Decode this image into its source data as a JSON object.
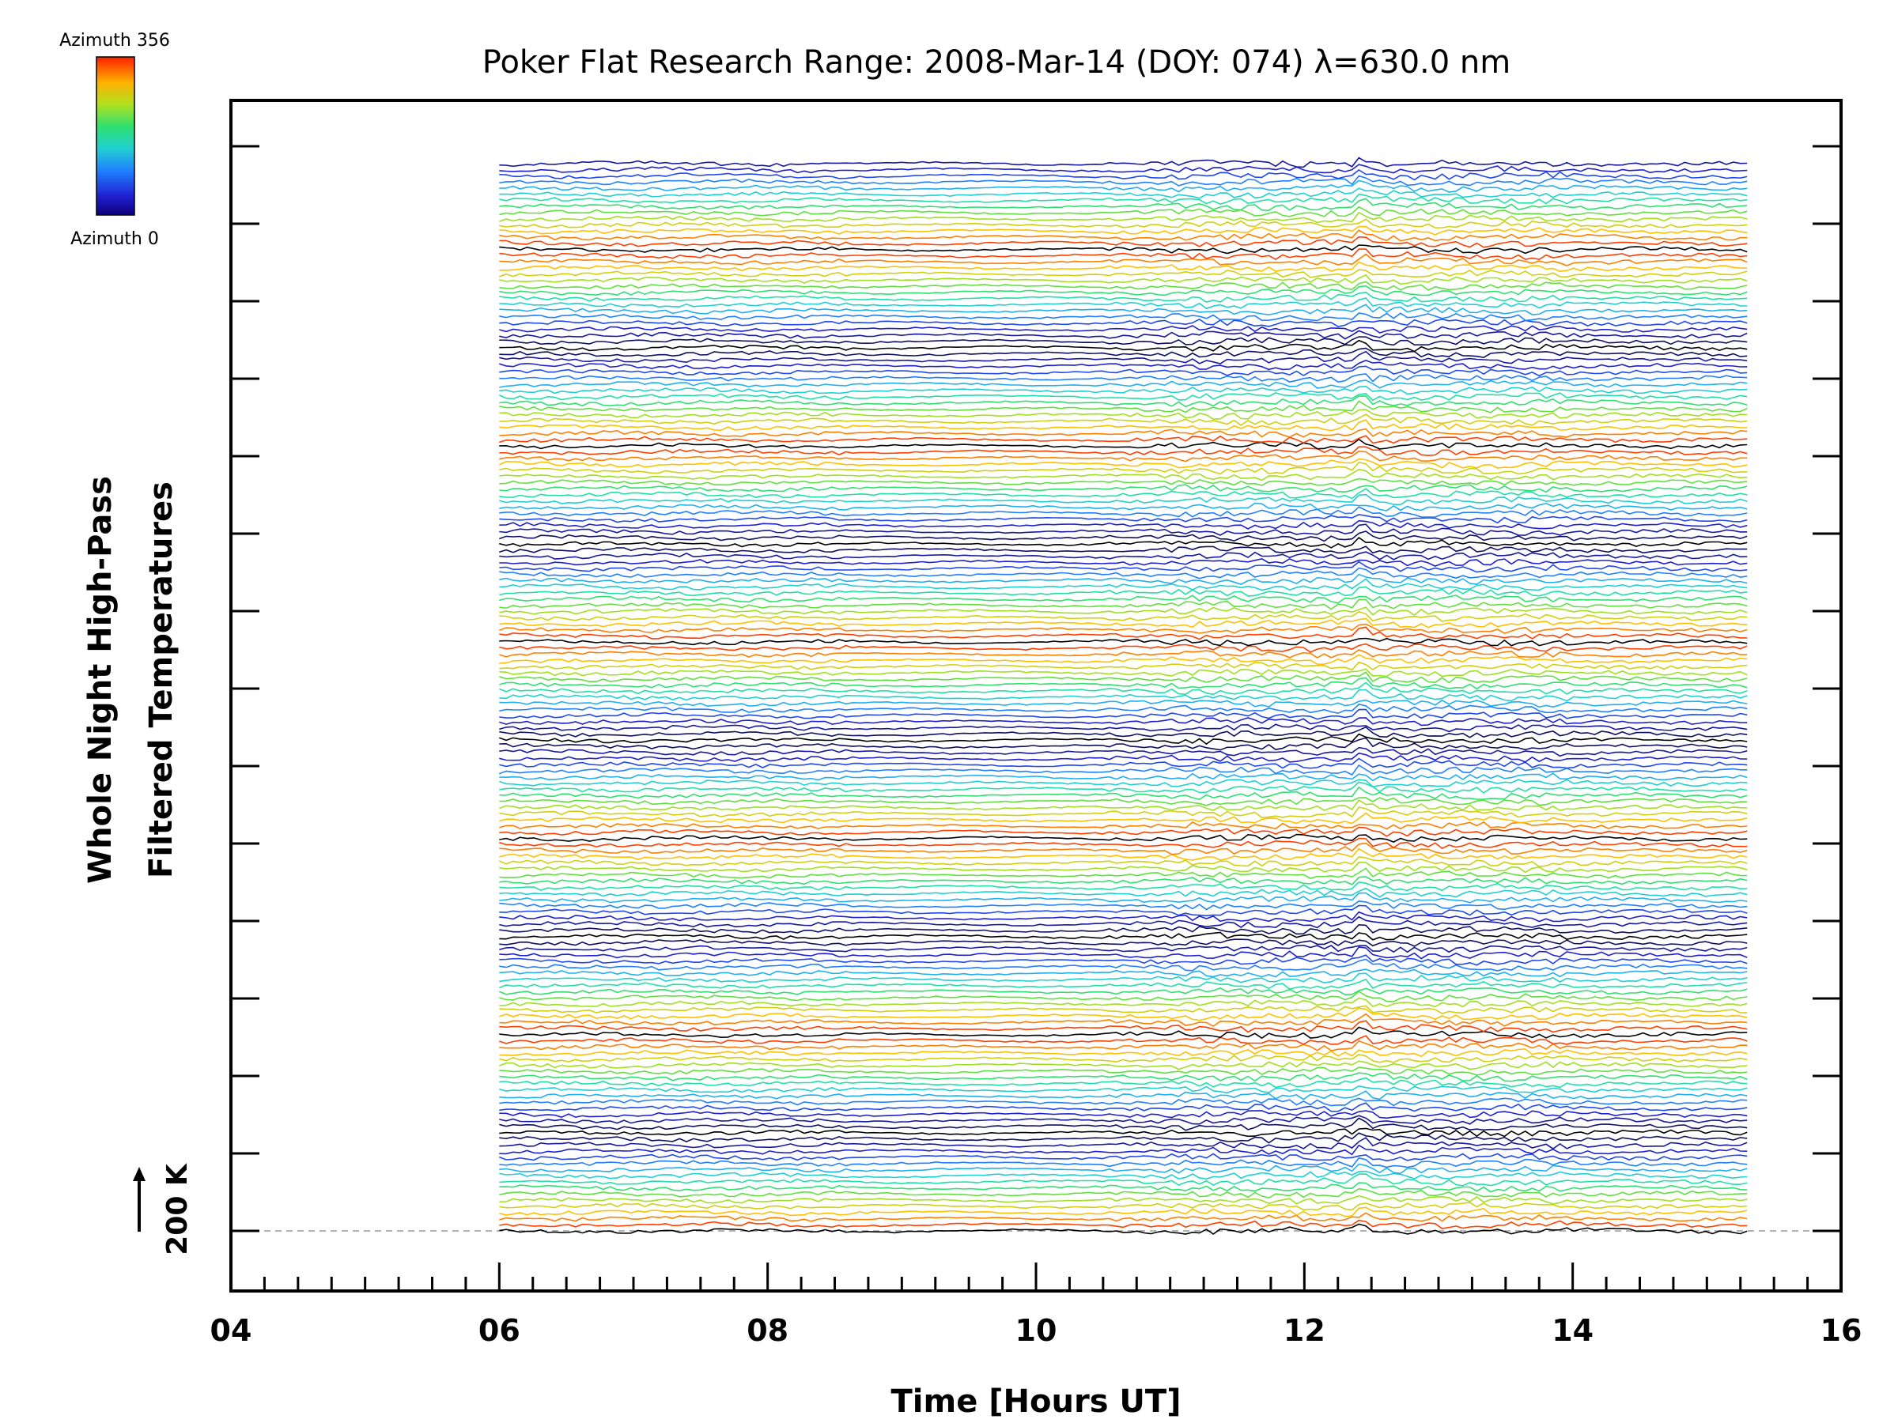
{
  "chart_data": {
    "type": "line",
    "title": "Poker Flat Research Range: 2008-Mar-14 (DOY: 074) λ=630.0 nm",
    "xlabel": "Time [Hours UT]",
    "ylabel_line1": "Whole Night High-Pass",
    "ylabel_line2": "Filtered Temperatures",
    "xlim": [
      4,
      16
    ],
    "x_ticks": [
      "04",
      "06",
      "08",
      "10",
      "12",
      "14",
      "16"
    ],
    "data_x_range": [
      6.0,
      15.3
    ],
    "n_traces": 175,
    "trace_offset_note": "traces stacked vertically by azimuth index",
    "scale_bar_label": "200 K",
    "baseline": "dashed",
    "colorbar": {
      "top_label": "Azimuth 356",
      "bottom_label": "Azimuth 0",
      "colormap": "rainbow",
      "colors": [
        "#000000",
        "#1a1aa0",
        "#2060ff",
        "#20c0e0",
        "#30e080",
        "#c0e020",
        "#ffb000",
        "#ff3000"
      ]
    },
    "grid": false
  }
}
